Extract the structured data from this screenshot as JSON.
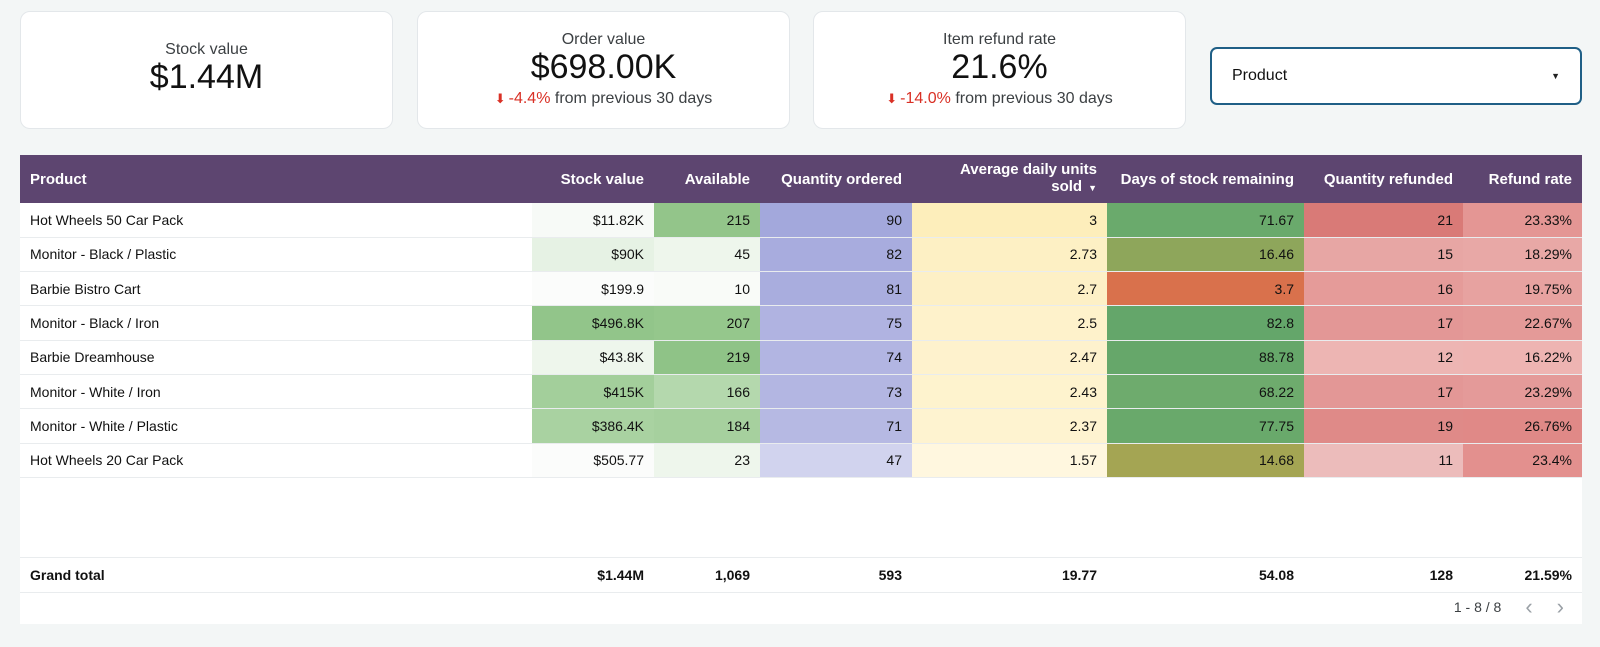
{
  "cards": [
    {
      "label": "Stock value",
      "value": "$1.44M"
    },
    {
      "label": "Order value",
      "value": "$698.00K",
      "delta": "-4.4%",
      "delta_text": "from previous 30 days"
    },
    {
      "label": "Item refund rate",
      "value": "21.6%",
      "delta": "-14.0%",
      "delta_text": "from previous 30 days"
    }
  ],
  "filter": {
    "label": "Product"
  },
  "table": {
    "columns": [
      "Product",
      "Stock value",
      "Available",
      "Quantity ordered",
      "Average daily units sold",
      "Days of stock remaining",
      "Quantity refunded",
      "Refund rate"
    ],
    "rows": [
      [
        "Hot Wheels 50 Car Pack",
        "$11.82K",
        "215",
        "90",
        "3",
        "71.67",
        "21",
        "23.33%"
      ],
      [
        "Monitor - Black / Plastic",
        "$90K",
        "45",
        "82",
        "2.73",
        "16.46",
        "15",
        "18.29%"
      ],
      [
        "Barbie Bistro Cart",
        "$199.9",
        "10",
        "81",
        "2.7",
        "3.7",
        "16",
        "19.75%"
      ],
      [
        "Monitor - Black / Iron",
        "$496.8K",
        "207",
        "75",
        "2.5",
        "82.8",
        "17",
        "22.67%"
      ],
      [
        "Barbie Dreamhouse",
        "$43.8K",
        "219",
        "74",
        "2.47",
        "88.78",
        "12",
        "16.22%"
      ],
      [
        "Monitor - White / Iron",
        "$415K",
        "166",
        "73",
        "2.43",
        "68.22",
        "17",
        "23.29%"
      ],
      [
        "Monitor - White / Plastic",
        "$386.4K",
        "184",
        "71",
        "2.37",
        "77.75",
        "19",
        "26.76%"
      ],
      [
        "Hot Wheels 20 Car Pack",
        "$505.77",
        "23",
        "47",
        "1.57",
        "14.68",
        "11",
        "23.4%"
      ]
    ],
    "cell_colors": [
      [
        "#ffffff",
        "#f7faf7",
        "#93c58a",
        "#a3a8dc",
        "#fdeebb",
        "#6aaa6c",
        "#d97a77",
        "#e49694"
      ],
      [
        "#ffffff",
        "#e6f2e4",
        "#eef6ec",
        "#a8acde",
        "#fdf0c4",
        "#8ea65b",
        "#e7a6a4",
        "#e8a8a6"
      ],
      [
        "#ffffff",
        "#fbfcfb",
        "#f9fbf8",
        "#a9adde",
        "#fdf0c6",
        "#d9714c",
        "#e59b99",
        "#e7a2a0"
      ],
      [
        "#ffffff",
        "#92c58a",
        "#95c78c",
        "#b0b3e1",
        "#fef2cb",
        "#64a66a",
        "#e39796",
        "#e49a98"
      ],
      [
        "#ffffff",
        "#eef6ec",
        "#8fc387",
        "#b2b5e2",
        "#fef2cd",
        "#66a76a",
        "#edb5b3",
        "#eeb4b2"
      ],
      [
        "#ffffff",
        "#a3cf9b",
        "#b4d8ad",
        "#b3b6e2",
        "#fef3ce",
        "#6eab6d",
        "#e39796",
        "#e49a99"
      ],
      [
        "#ffffff",
        "#a9d2a1",
        "#a6d09e",
        "#b6b9e3",
        "#fef3d0",
        "#69a96b",
        "#df8a88",
        "#e08987"
      ],
      [
        "#ffffff",
        "#fbfcfb",
        "#eef6ec",
        "#d1d3ee",
        "#fff7df",
        "#a4a553",
        "#ecbcbb",
        "#e3908e"
      ]
    ],
    "total": [
      "Grand total",
      "$1.44M",
      "1,069",
      "593",
      "19.77",
      "54.08",
      "128",
      "21.59%"
    ]
  },
  "pager": {
    "range": "1 - 8 / 8",
    "prev": "‹",
    "next": "›"
  }
}
